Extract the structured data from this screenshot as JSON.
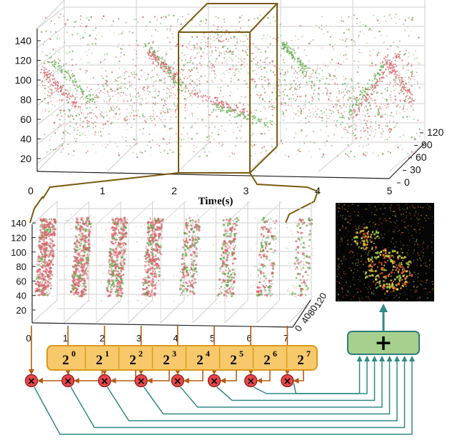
{
  "top_plot": {
    "xlabel": "Time(s)",
    "x_ticks": [
      "0",
      "1",
      "2",
      "3",
      "4",
      "5"
    ],
    "y_ticks": [
      "20",
      "40",
      "60",
      "80",
      "100",
      "120",
      "140"
    ],
    "z_ticks": [
      "0",
      "30",
      "60",
      "90",
      "120"
    ]
  },
  "bottom_plot": {
    "x_ticks": [
      "0",
      "1",
      "2",
      "3",
      "4",
      "5",
      "6",
      "7"
    ],
    "y_ticks": [
      "20",
      "40",
      "60",
      "80",
      "100",
      "120",
      "140"
    ],
    "z_ticks": [
      "0",
      "40",
      "80",
      "120"
    ]
  },
  "weight_bar": {
    "bases": [
      "2",
      "2",
      "2",
      "2",
      "2",
      "2",
      "2",
      "2"
    ],
    "exponents": [
      "0",
      "1",
      "2",
      "3",
      "4",
      "5",
      "6",
      "7"
    ]
  },
  "multiply_symbol": "×",
  "sum_symbol": "+",
  "colors": {
    "event_red": "#d9606a",
    "event_green": "#5fae4f",
    "bracket_brown": "#7a5a10",
    "arrow_orange": "#b55a12",
    "weight_fill": "#f7c96a",
    "weight_border": "#d99a1a",
    "multiplier_fill": "#e8464a",
    "sum_fill": "#a7d08e",
    "sum_border": "#2f7d7a",
    "connector_teal": "#2f8a88"
  }
}
